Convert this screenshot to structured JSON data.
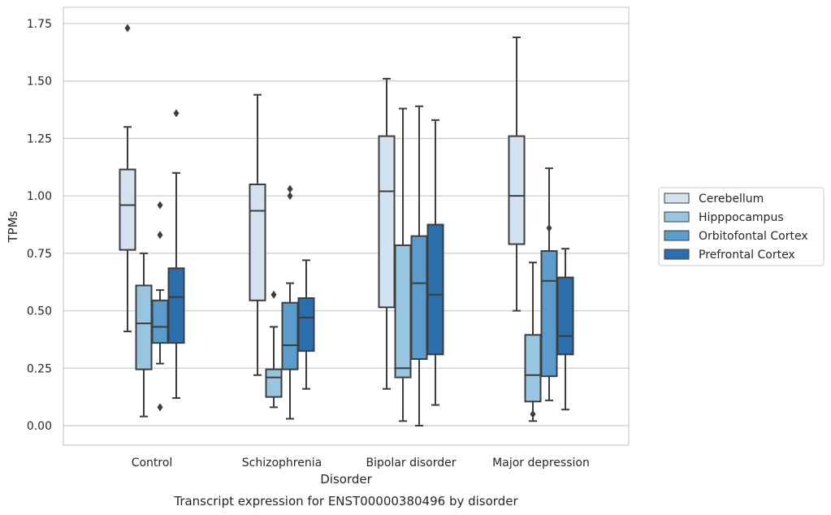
{
  "chart_data": {
    "type": "box",
    "title": "",
    "caption": "Transcript expression for ENST00000380496 by disorder",
    "xlabel": "Disorder",
    "ylabel": "TPMs",
    "ylim": [
      -0.08,
      1.82
    ],
    "yticks": [
      "0.00",
      "0.25",
      "0.50",
      "0.75",
      "1.00",
      "1.25",
      "1.50",
      "1.75"
    ],
    "ytick_values": [
      0,
      0.25,
      0.5,
      0.75,
      1.0,
      1.25,
      1.5,
      1.75
    ],
    "grid": "horizontal",
    "legend_position": "right",
    "categories": [
      "Control",
      "Schizophrenia",
      "Bipolar disorder",
      "Major depression"
    ],
    "series": [
      {
        "name": "Cerebellum",
        "color": "#d2e2f0",
        "boxes": [
          {
            "whislo": 0.41,
            "q1": 0.765,
            "med": 0.96,
            "q3": 1.115,
            "whishi": 1.3,
            "fliers": [
              1.73
            ]
          },
          {
            "whislo": 0.22,
            "q1": 0.545,
            "med": 0.935,
            "q3": 1.05,
            "whishi": 1.44,
            "fliers": []
          },
          {
            "whislo": 0.16,
            "q1": 0.515,
            "med": 1.02,
            "q3": 1.26,
            "whishi": 1.51,
            "fliers": []
          },
          {
            "whislo": 0.5,
            "q1": 0.79,
            "med": 1.0,
            "q3": 1.26,
            "whishi": 1.69,
            "fliers": []
          }
        ]
      },
      {
        "name": "Hipppocampus",
        "color": "#9ac5e1",
        "boxes": [
          {
            "whislo": 0.04,
            "q1": 0.245,
            "med": 0.445,
            "q3": 0.61,
            "whishi": 0.75,
            "fliers": []
          },
          {
            "whislo": 0.08,
            "q1": 0.125,
            "med": 0.21,
            "q3": 0.245,
            "whishi": 0.43,
            "fliers": [
              0.57
            ]
          },
          {
            "whislo": 0.02,
            "q1": 0.21,
            "med": 0.25,
            "q3": 0.785,
            "whishi": 1.38,
            "fliers": []
          },
          {
            "whislo": 0.02,
            "q1": 0.105,
            "med": 0.22,
            "q3": 0.395,
            "whishi": 0.71,
            "fliers": [
              0.05
            ]
          }
        ]
      },
      {
        "name": "Orbitofontal Cortex",
        "color": "#5b9ccc",
        "boxes": [
          {
            "whislo": 0.27,
            "q1": 0.36,
            "med": 0.43,
            "q3": 0.545,
            "whishi": 0.59,
            "fliers": [
              0.96,
              0.83,
              0.08
            ]
          },
          {
            "whislo": 0.03,
            "q1": 0.245,
            "med": 0.35,
            "q3": 0.535,
            "whishi": 0.62,
            "fliers": [
              1.03,
              1.0
            ]
          },
          {
            "whislo": 0.0,
            "q1": 0.29,
            "med": 0.62,
            "q3": 0.825,
            "whishi": 1.39,
            "fliers": []
          },
          {
            "whislo": 0.11,
            "q1": 0.215,
            "med": 0.63,
            "q3": 0.76,
            "whishi": 1.12,
            "fliers": [
              0.86
            ]
          }
        ]
      },
      {
        "name": "Prefrontal Cortex",
        "color": "#2a6ead",
        "boxes": [
          {
            "whislo": 0.12,
            "q1": 0.36,
            "med": 0.56,
            "q3": 0.685,
            "whishi": 1.1,
            "fliers": [
              1.36
            ]
          },
          {
            "whislo": 0.16,
            "q1": 0.325,
            "med": 0.47,
            "q3": 0.555,
            "whishi": 0.72,
            "fliers": []
          },
          {
            "whislo": 0.09,
            "q1": 0.31,
            "med": 0.57,
            "q3": 0.875,
            "whishi": 1.33,
            "fliers": []
          },
          {
            "whislo": 0.07,
            "q1": 0.31,
            "med": 0.39,
            "q3": 0.645,
            "whishi": 0.77,
            "fliers": []
          }
        ]
      }
    ]
  }
}
